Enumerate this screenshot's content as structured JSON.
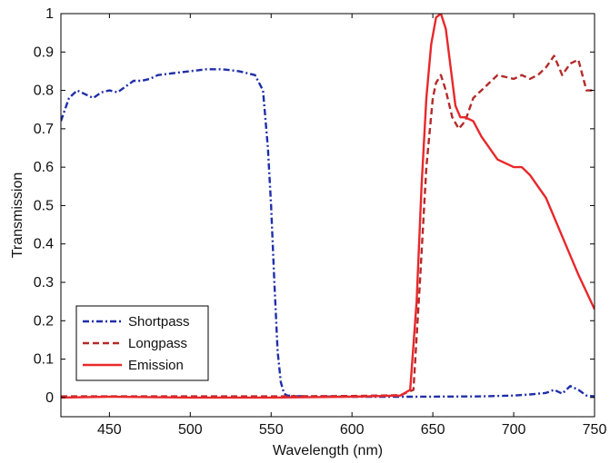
{
  "chart_data": {
    "type": "line",
    "title": "",
    "xlabel": "Wavelength (nm)",
    "ylabel": "Transmission",
    "xlim": [
      420,
      750
    ],
    "ylim": [
      -0.05,
      1.0
    ],
    "xticks": [
      450,
      500,
      550,
      600,
      650,
      700,
      750
    ],
    "yticks": [
      0,
      0.1,
      0.2,
      0.3,
      0.4,
      0.5,
      0.6,
      0.7,
      0.8,
      0.9,
      1
    ],
    "xtick_labels": [
      "450",
      "500",
      "550",
      "600",
      "650",
      "700",
      "750"
    ],
    "ytick_labels": [
      "0",
      "0.1",
      "0.2",
      "0.3",
      "0.4",
      "0.5",
      "0.6",
      "0.7",
      "0.8",
      "0.9",
      "1"
    ],
    "grid": false,
    "legend_position": "lower-left",
    "series": [
      {
        "name": "Shortpass",
        "color": "#1f2fa8",
        "style": "dashdot",
        "x": [
          420,
          425,
          430,
          435,
          440,
          445,
          450,
          455,
          460,
          465,
          470,
          475,
          480,
          490,
          500,
          510,
          520,
          530,
          540,
          545,
          548,
          550,
          552,
          554,
          556,
          558,
          560,
          565,
          570,
          600,
          640,
          680,
          700,
          710,
          720,
          725,
          730,
          735,
          740,
          745,
          750
        ],
        "y": [
          0.72,
          0.78,
          0.8,
          0.79,
          0.78,
          0.795,
          0.8,
          0.795,
          0.81,
          0.825,
          0.825,
          0.83,
          0.84,
          0.845,
          0.85,
          0.855,
          0.855,
          0.85,
          0.84,
          0.8,
          0.65,
          0.5,
          0.3,
          0.12,
          0.04,
          0.01,
          0.005,
          0.004,
          0.003,
          0.002,
          0.002,
          0.003,
          0.005,
          0.008,
          0.012,
          0.02,
          0.01,
          0.03,
          0.02,
          0.005,
          0.003
        ]
      },
      {
        "name": "Longpass",
        "color": "#b52a2a",
        "style": "dashed",
        "x": [
          420,
          450,
          500,
          550,
          600,
          630,
          638,
          642,
          646,
          650,
          652,
          655,
          658,
          662,
          666,
          670,
          675,
          680,
          690,
          700,
          705,
          710,
          715,
          720,
          725,
          730,
          735,
          740,
          745,
          750
        ],
        "y": [
          0.003,
          0.003,
          0.003,
          0.003,
          0.004,
          0.006,
          0.02,
          0.3,
          0.6,
          0.78,
          0.82,
          0.84,
          0.8,
          0.73,
          0.7,
          0.72,
          0.78,
          0.8,
          0.84,
          0.83,
          0.84,
          0.83,
          0.84,
          0.86,
          0.89,
          0.84,
          0.87,
          0.88,
          0.8,
          0.8
        ]
      },
      {
        "name": "Emission",
        "color": "#e8282b",
        "style": "solid",
        "x": [
          420,
          450,
          500,
          550,
          600,
          630,
          636,
          640,
          643,
          646,
          649,
          652,
          655,
          658,
          661,
          664,
          667,
          670,
          675,
          680,
          690,
          700,
          705,
          710,
          720,
          730,
          740,
          750
        ],
        "y": [
          0.0,
          0.002,
          0.0,
          0.0,
          0.002,
          0.005,
          0.02,
          0.25,
          0.55,
          0.78,
          0.92,
          0.99,
          1.0,
          0.96,
          0.86,
          0.76,
          0.73,
          0.73,
          0.72,
          0.68,
          0.62,
          0.6,
          0.6,
          0.58,
          0.52,
          0.42,
          0.32,
          0.23
        ]
      }
    ]
  }
}
